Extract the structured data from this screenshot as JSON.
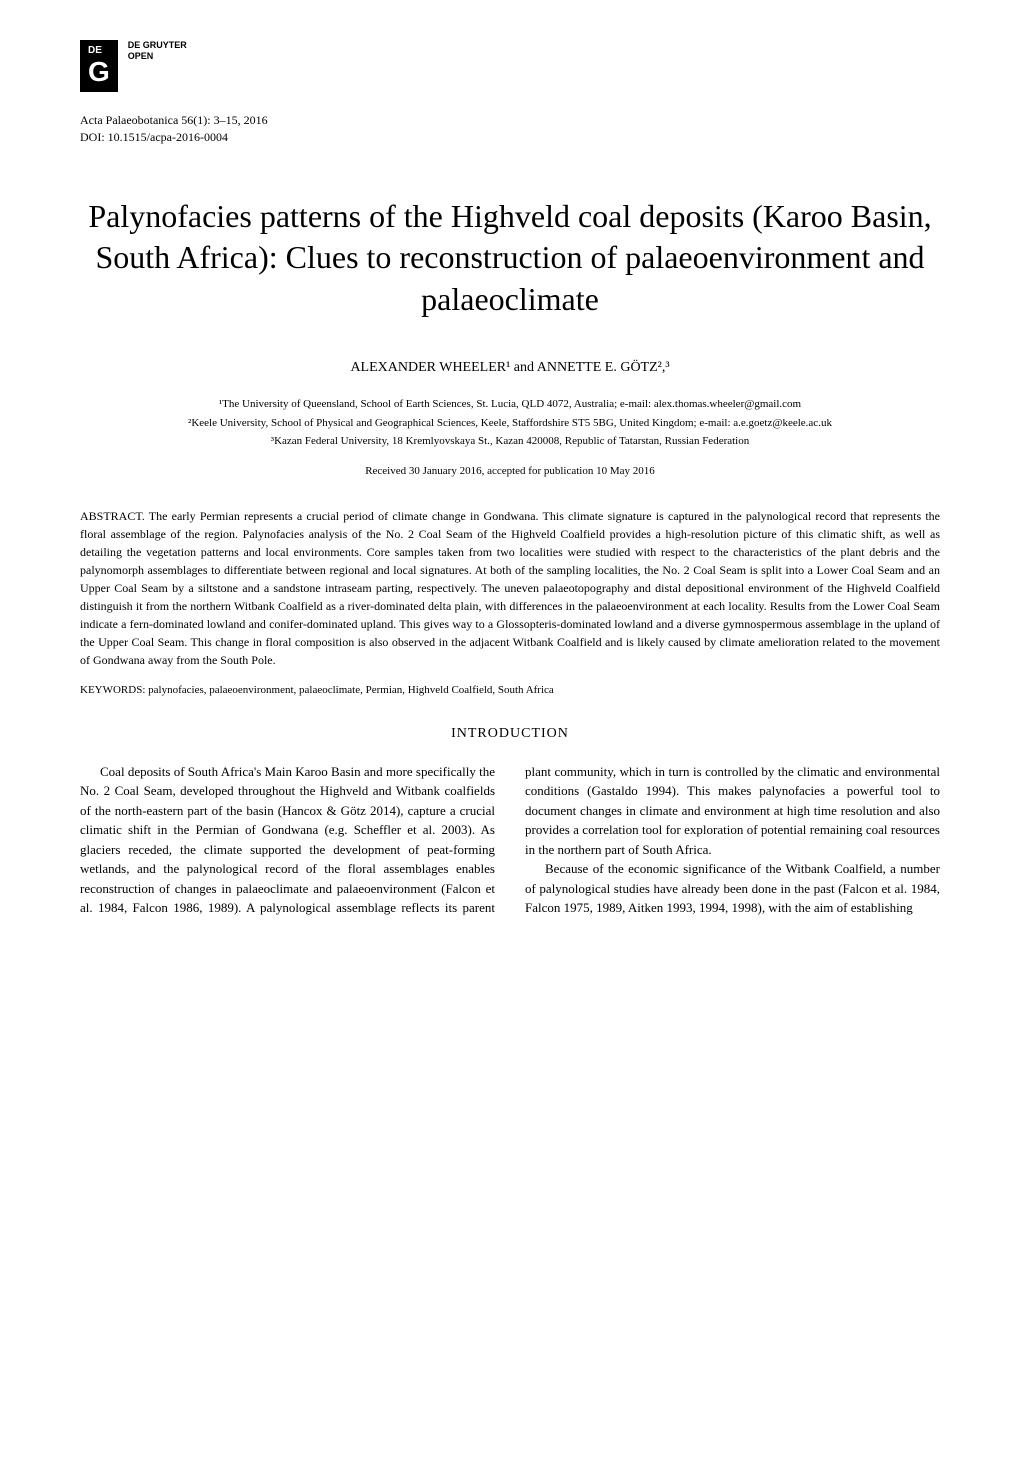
{
  "publisher": {
    "logo_de": "DE",
    "logo_g": "G",
    "name_line1": "DE GRUYTER",
    "name_line2": "OPEN"
  },
  "journal": {
    "citation": "Acta Palaeobotanica 56(1): 3–15, 2016",
    "doi": "DOI: 10.1515/acpa-2016-0004"
  },
  "title": "Palynofacies patterns of the Highveld coal deposits (Karoo Basin, South Africa): Clues to reconstruction of palaeoenvironment and palaeoclimate",
  "authors": "ALEXANDER WHEELER¹ and ANNETTE E. GÖTZ²,³",
  "affiliations": {
    "aff1": "¹The University of Queensland, School of Earth Sciences, St. Lucia, QLD 4072, Australia; e-mail: alex.thomas.wheeler@gmail.com",
    "aff2": "²Keele University, School of Physical and Geographical Sciences, Keele, Staffordshire ST5 5BG, United Kingdom; e-mail: a.e.goetz@keele.ac.uk",
    "aff3": "³Kazan Federal University, 18 Kremlyovskaya St., Kazan 420008, Republic of Tatarstan, Russian Federation"
  },
  "dates": "Received 30 January 2016, accepted for publication 10 May 2016",
  "abstract": {
    "label": "ABSTRACT. ",
    "text": "The early Permian represents a crucial period of climate change in Gondwana. This climate signature is captured in the palynological record that represents the floral assemblage of the region. Palynofacies analysis of the No. 2 Coal Seam of the Highveld Coalfield provides a high-resolution picture of this climatic shift, as well as detailing the vegetation patterns and local environments. Core samples taken from two localities were studied with respect to the characteristics of the plant debris and the palynomorph assemblages to differentiate between regional and local signatures. At both of the sampling localities, the No. 2 Coal Seam is split into a Lower Coal Seam and an Upper Coal Seam by a siltstone and a sandstone intraseam parting, respectively. The uneven palaeotopography and distal depositional environment of the Highveld Coalfield distinguish it from the northern Witbank Coalfield as a river-dominated delta plain, with differences in the palaeoenvironment at each locality. Results from the Lower Coal Seam indicate a fern-dominated lowland and conifer-dominated upland. This gives way to a Glossopteris-dominated lowland and a diverse gymnospermous assemblage in the upland of the Upper Coal Seam. This change in floral composition is also observed in the adjacent Witbank Coalfield and is likely caused by climate amelioration related to the movement of Gondwana away from the South Pole."
  },
  "keywords": {
    "label": "KEYWORDS: ",
    "text": "palynofacies, palaeoenvironment, palaeoclimate, Permian, Highveld Coalfield, South Africa"
  },
  "section_header": "INTRODUCTION",
  "body": {
    "para1": "Coal deposits of South Africa's Main Karoo Basin and more specifically the No. 2 Coal Seam, developed throughout the Highveld and Witbank coalfields of the north-eastern part of the basin (Hancox & Götz 2014), capture a crucial climatic shift in the Permian of Gondwana (e.g. Scheffler et al. 2003). As glaciers receded, the climate supported the development of peat-forming wetlands, and the palynological record of the floral assemblages enables reconstruction of changes in palaeoclimate and palaeoenvironment (Falcon et al. 1984, Falcon 1986, 1989). A palynological assemblage reflects its parent plant community, which in turn is controlled by the climatic and environmental conditions (Gastaldo 1994). This makes palynofacies a powerful tool to document changes in climate and environment at high time resolution and also provides a correlation tool for exploration of potential remaining coal resources in the northern part of South Africa.",
    "para2": "Because of the economic significance of the Witbank Coalfield, a number of palynological studies have already been done in the past (Falcon et al. 1984, Falcon 1975, 1989, Aitken 1993, 1994, 1998), with the aim of establishing"
  }
}
